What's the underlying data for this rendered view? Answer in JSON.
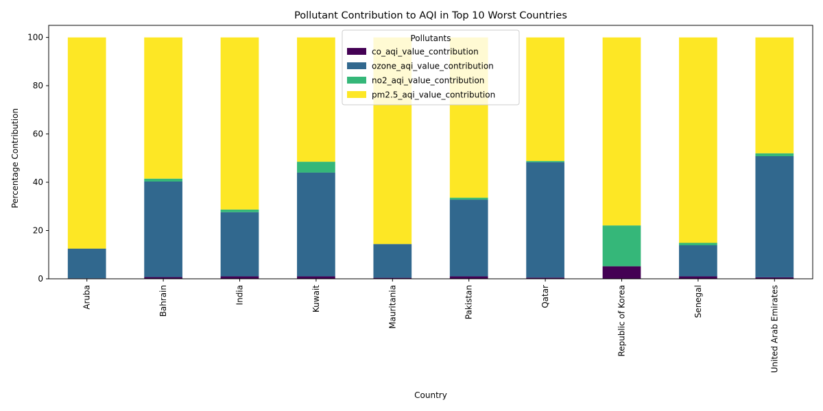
{
  "chart_data": {
    "type": "bar",
    "stacked": true,
    "title": "Pollutant Contribution to AQI in Top 10 Worst Countries",
    "xlabel": "Country",
    "ylabel": "Percentage Contribution",
    "ylim": [
      0,
      105
    ],
    "yticks": [
      0,
      20,
      40,
      60,
      80,
      100
    ],
    "grid": false,
    "legend_title": "Pollutants",
    "legend_position": "top-center",
    "categories": [
      "Aruba",
      "Bahrain",
      "India",
      "Kuwait",
      "Mauritania",
      "Pakistan",
      "Qatar",
      "Republic of Korea",
      "Senegal",
      "United Arab Emirates"
    ],
    "series": [
      {
        "name": "co_aqi_value_contribution",
        "color": "#440154",
        "values": [
          0.2,
          0.7,
          1.0,
          1.0,
          0.4,
          1.0,
          0.5,
          5.2,
          1.0,
          0.6
        ]
      },
      {
        "name": "ozone_aqi_value_contribution",
        "color": "#31688e",
        "values": [
          12.3,
          39.6,
          26.6,
          43.0,
          14.0,
          31.8,
          47.8,
          0.0,
          12.9,
          50.2
        ]
      },
      {
        "name": "no2_aqi_value_contribution",
        "color": "#35b779",
        "values": [
          0.0,
          1.2,
          1.1,
          4.5,
          0.0,
          0.8,
          0.5,
          16.9,
          1.0,
          1.2
        ]
      },
      {
        "name": "pm2.5_aqi_value_contribution",
        "color": "#fde725",
        "values": [
          87.5,
          58.5,
          71.3,
          51.5,
          85.6,
          66.4,
          51.2,
          77.9,
          85.1,
          48.0
        ]
      }
    ]
  }
}
